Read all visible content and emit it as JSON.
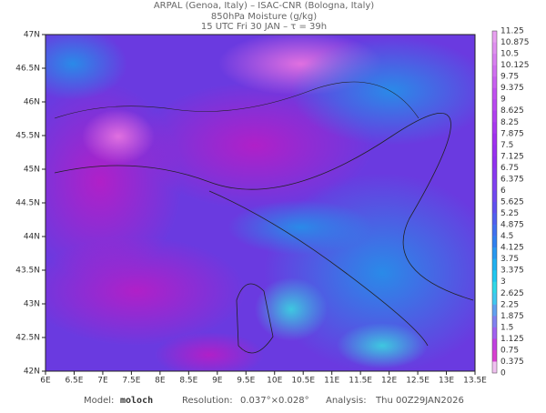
{
  "header": {
    "line1": "ARPAL (Genoa, Italy)  –  ISAC-CNR (Bologna, Italy)",
    "line2": "850hPa Moisture (g/kg)",
    "line3": "15 UTC Fri 30 JAN  –  τ = 39h"
  },
  "map": {
    "lat_labels": [
      "47N",
      "46.5N",
      "46N",
      "45.5N",
      "45N",
      "44.5N",
      "44N",
      "43.5N",
      "43N",
      "42.5N",
      "42N"
    ],
    "lon_labels": [
      "6E",
      "6.5E",
      "7E",
      "7.5E",
      "8E",
      "8.5E",
      "9E",
      "9.5E",
      "10E",
      "10.5E",
      "11E",
      "11.5E",
      "12E",
      "12.5E",
      "13E",
      "13.5E"
    ]
  },
  "colorbar": {
    "labels": [
      "11.25",
      "10.875",
      "10.5",
      "10.125",
      "9.75",
      "9.375",
      "9",
      "8.625",
      "8.25",
      "7.875",
      "7.5",
      "7.125",
      "6.75",
      "6.375",
      "6",
      "5.625",
      "5.25",
      "4.875",
      "4.5",
      "4.125",
      "3.75",
      "3.375",
      "3",
      "2.625",
      "2.25",
      "1.875",
      "1.5",
      "1.125",
      "0.75",
      "0.375",
      "0"
    ]
  },
  "footer": {
    "model_label": "Model:",
    "model": "moloch",
    "resolution_label": "Resolution:",
    "resolution": "0.037°×0.028°",
    "analysis_label": "Analysis:",
    "analysis": "Thu 00Z29JAN2026"
  }
}
